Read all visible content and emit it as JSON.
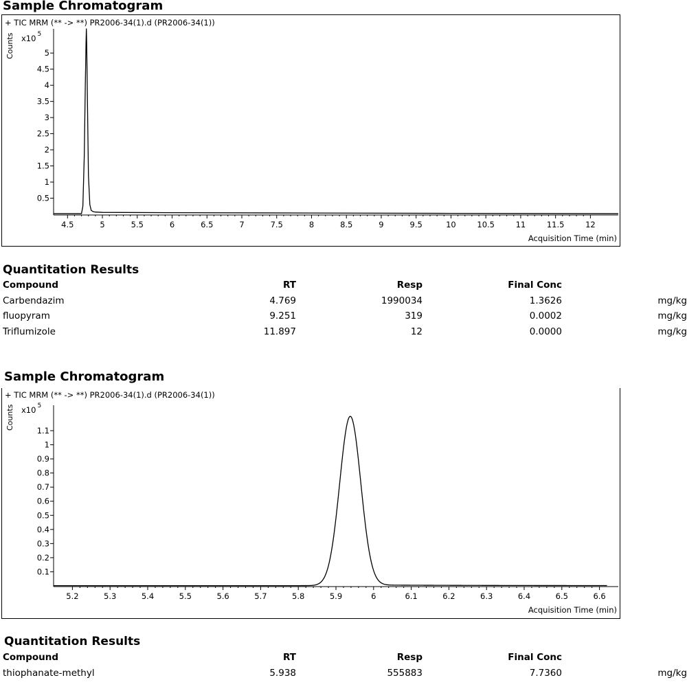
{
  "sections": [
    {
      "title": "Sample Chromatogram",
      "trace_label": "+ TIC MRM (** -> **) PR2006-34(1).d (PR2006-34(1))",
      "y_axis_label": "Counts",
      "y_multiplier": "x10",
      "y_multiplier_exp": "5",
      "x_axis_label": "Acquisition Time (min)",
      "chart_data": {
        "type": "line",
        "xlim": [
          4.3,
          12.4
        ],
        "ylim": [
          0,
          5.75
        ],
        "x_ticks": [
          4.5,
          5,
          5.5,
          6,
          6.5,
          7,
          7.5,
          8,
          8.5,
          9,
          9.5,
          10,
          10.5,
          11,
          11.5,
          12
        ],
        "x_tick_labels": [
          "4.5",
          "5",
          "5.5",
          "6",
          "6.5",
          "7",
          "7.5",
          "8",
          "8.5",
          "9",
          "9.5",
          "10",
          "10.5",
          "11",
          "11.5",
          "12"
        ],
        "y_ticks": [
          0.5,
          1,
          1.5,
          2,
          2.5,
          3,
          3.5,
          4,
          4.5,
          5
        ],
        "y_tick_labels": [
          "0.5",
          "1",
          "1.5",
          "2",
          "2.5",
          "3",
          "3.5",
          "4",
          "4.5",
          "5"
        ],
        "series": [
          {
            "x": [
              4.3,
              4.7,
              4.72,
              4.74,
              4.755,
              4.765,
              4.77,
              4.775,
              4.785,
              4.8,
              4.82,
              4.84,
              4.87,
              4.9,
              5.0,
              6.0,
              8.0,
              10.0,
              12.4
            ],
            "y": [
              0.02,
              0.02,
              0.25,
              1.8,
              4.0,
              5.3,
              5.75,
              5.3,
              3.6,
              1.2,
              0.3,
              0.12,
              0.08,
              0.07,
              0.06,
              0.05,
              0.04,
              0.03,
              0.02
            ]
          }
        ]
      },
      "results_title": "Quantitation Results",
      "columns": [
        "Compound",
        "RT",
        "Resp",
        "Final Conc"
      ],
      "rows": [
        {
          "compound": "Carbendazim",
          "rt": "4.769",
          "resp": "1990034",
          "conc": "1.3626",
          "unit": "mg/kg"
        },
        {
          "compound": "fluopyram",
          "rt": "9.251",
          "resp": "319",
          "conc": "0.0002",
          "unit": "mg/kg"
        },
        {
          "compound": "Triflumizole",
          "rt": "11.897",
          "resp": "12",
          "conc": "0.0000",
          "unit": "mg/kg"
        }
      ]
    },
    {
      "title": "Sample Chromatogram",
      "trace_label": "+ TIC MRM (** -> **) PR2006-34(1).d (PR2006-34(1))",
      "y_axis_label": "Counts",
      "y_multiplier": "x10",
      "y_multiplier_exp": "5",
      "x_axis_label": "Acquisition Time (min)",
      "chart_data": {
        "type": "line",
        "xlim": [
          5.15,
          6.65
        ],
        "ylim": [
          0,
          1.28
        ],
        "x_ticks": [
          5.2,
          5.3,
          5.4,
          5.5,
          5.6,
          5.7,
          5.8,
          5.9,
          6.0,
          6.1,
          6.2,
          6.3,
          6.4,
          6.5,
          6.6
        ],
        "x_tick_labels": [
          "5.2",
          "5.3",
          "5.4",
          "5.5",
          "5.6",
          "5.7",
          "5.8",
          "5.9",
          "6",
          "6.1",
          "6.2",
          "6.3",
          "6.4",
          "6.5",
          "6.6"
        ],
        "y_ticks": [
          0.1,
          0.2,
          0.3,
          0.4,
          0.5,
          0.6,
          0.7,
          0.8,
          0.9,
          1.0,
          1.1
        ],
        "y_tick_labels": [
          "0.1",
          "0.2",
          "0.3",
          "0.4",
          "0.5",
          "0.6",
          "0.7",
          "0.8",
          "0.9",
          "1",
          "1.1"
        ],
        "series": [
          {
            "peak_rt": 5.938,
            "peak_height": 1.2,
            "peak_sigma": 0.028,
            "baseline": 0.002
          }
        ]
      },
      "results_title": "Quantitation Results",
      "columns": [
        "Compound",
        "RT",
        "Resp",
        "Final Conc"
      ],
      "rows": [
        {
          "compound": "thiophanate-methyl",
          "rt": "5.938",
          "resp": "555883",
          "conc": "7.7360",
          "unit": "mg/kg"
        }
      ]
    }
  ]
}
